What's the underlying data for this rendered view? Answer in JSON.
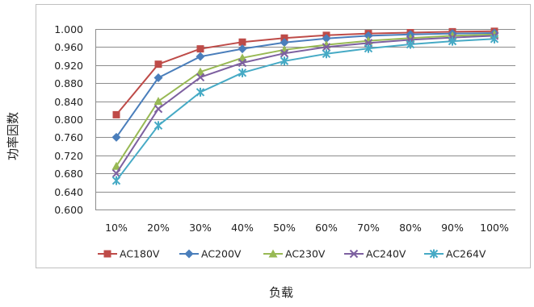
{
  "chart_data": {
    "type": "line",
    "title": "",
    "xlabel": "负载",
    "ylabel": "功率因数",
    "categories": [
      "10%",
      "20%",
      "30%",
      "40%",
      "50%",
      "60%",
      "70%",
      "80%",
      "90%",
      "100%"
    ],
    "ylim": [
      0.6,
      1.0
    ],
    "yticks": [
      "0.600",
      "0.640",
      "0.680",
      "0.720",
      "0.760",
      "0.800",
      "0.840",
      "0.880",
      "0.920",
      "0.960",
      "1.000"
    ],
    "grid": true,
    "legend": "bottom",
    "series": [
      {
        "name": "AC180V",
        "color": "#be4b48",
        "marker": "square",
        "values": [
          0.81,
          0.922,
          0.956,
          0.971,
          0.98,
          0.986,
          0.99,
          0.992,
          0.994,
          0.995
        ]
      },
      {
        "name": "AC200V",
        "color": "#4a7ebb",
        "marker": "diamond",
        "values": [
          0.76,
          0.892,
          0.939,
          0.956,
          0.97,
          0.979,
          0.985,
          0.988,
          0.99,
          0.991
        ]
      },
      {
        "name": "AC230V",
        "color": "#98b954",
        "marker": "triangle",
        "values": [
          0.696,
          0.84,
          0.905,
          0.936,
          0.954,
          0.965,
          0.974,
          0.98,
          0.985,
          0.988
        ]
      },
      {
        "name": "AC240V",
        "color": "#7d60a0",
        "marker": "x",
        "values": [
          0.68,
          0.823,
          0.893,
          0.925,
          0.946,
          0.96,
          0.969,
          0.976,
          0.981,
          0.985
        ]
      },
      {
        "name": "AC264V",
        "color": "#46aac5",
        "marker": "star",
        "values": [
          0.664,
          0.786,
          0.86,
          0.903,
          0.929,
          0.945,
          0.957,
          0.966,
          0.973,
          0.978
        ]
      }
    ]
  }
}
